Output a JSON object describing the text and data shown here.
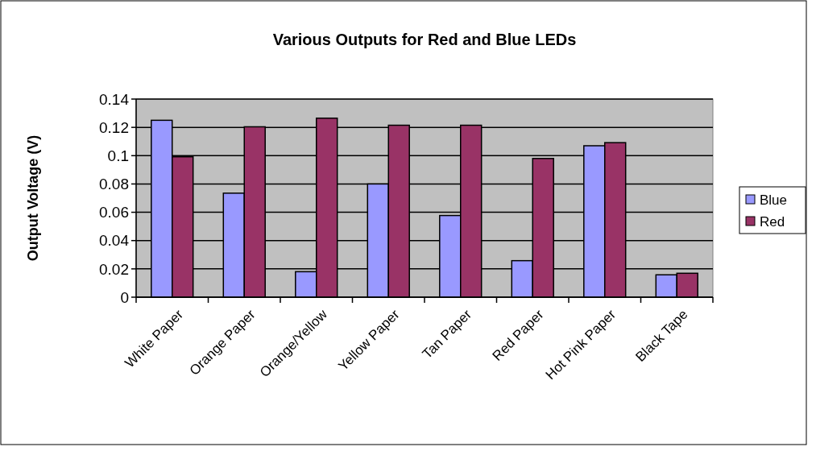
{
  "chart_data": {
    "type": "bar",
    "title": "Various Outputs for Red and Blue LEDs",
    "ylabel": "Output Voltage (V)",
    "categories": [
      "White Paper",
      "Orange Paper",
      "Orange/Yellow",
      "Yellow Paper",
      "Tan Paper",
      "Red Paper",
      "Hot Pink Paper",
      "Black Tape"
    ],
    "series": [
      {
        "name": "Blue",
        "color": "#9999ff",
        "values": [
          0.125,
          0.0735,
          0.018,
          0.08,
          0.0577,
          0.0258,
          0.107,
          0.0158
        ]
      },
      {
        "name": "Red",
        "color": "#993366",
        "values": [
          0.0992,
          0.1204,
          0.1265,
          0.1215,
          0.1215,
          0.098,
          0.1092,
          0.0169
        ]
      }
    ],
    "ylim": [
      0,
      0.14
    ],
    "yticks": [
      0,
      0.02,
      0.04,
      0.06,
      0.08,
      0.1,
      0.12,
      0.14
    ],
    "grid": "y",
    "legend": "right"
  }
}
